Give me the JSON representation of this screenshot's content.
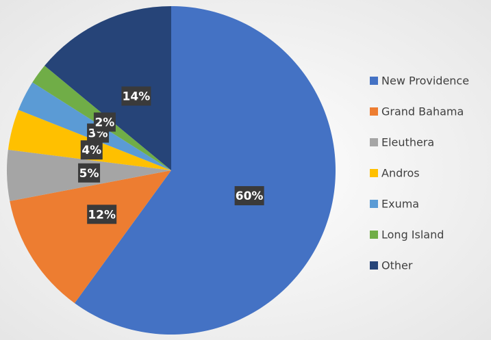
{
  "chart_data": {
    "type": "pie",
    "categories": [
      "New Providence",
      "Grand Bahama",
      "Eleuthera",
      "Andros",
      "Exuma",
      "Long Island",
      "Other"
    ],
    "values": [
      60,
      12,
      5,
      4,
      3,
      2,
      14
    ],
    "value_labels": [
      "60%",
      "12%",
      "5%",
      "4%",
      "3%",
      "2%",
      "14%"
    ],
    "colors": [
      "#4472c4",
      "#ed7d31",
      "#a5a5a5",
      "#ffc000",
      "#5b9bd5",
      "#70ad47",
      "#264478"
    ],
    "legend": "right"
  }
}
